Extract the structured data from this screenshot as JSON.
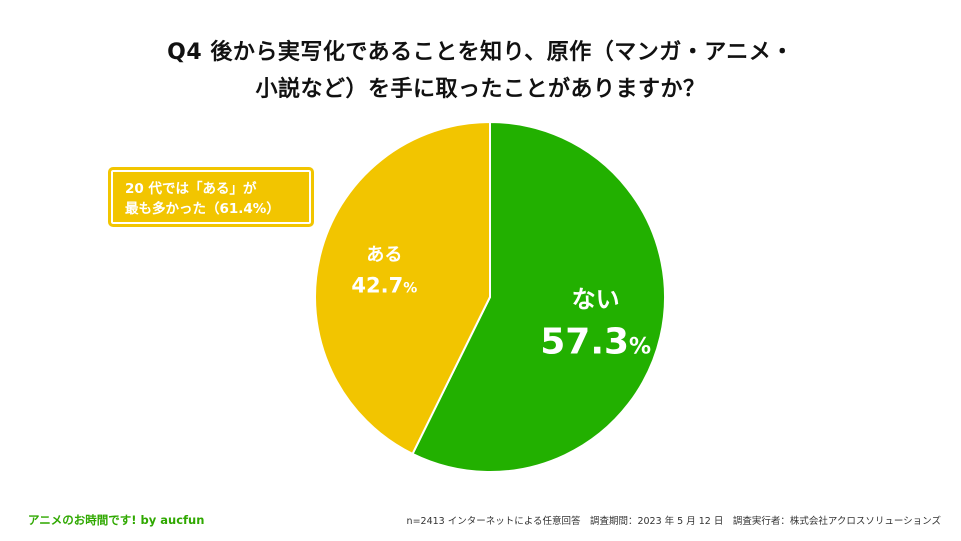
{
  "title": {
    "line1": "Q4  後から実写化であることを知り、原作（マンガ・アニメ・",
    "line2": "小説など）を手に取ったことがありますか？"
  },
  "callout": {
    "line1": "20 代では「ある」が",
    "line2": "最も多かった（61.4%）"
  },
  "footer": {
    "brand": "アニメのお時間です! by aucfun",
    "note": "n=2413 インターネットによる任意回答　調査期間：2023 年 5 月 12 日　調査実行者：株式会社アクロスソリューションズ"
  },
  "colors": {
    "green": "#22b000",
    "yellow": "#f2c500",
    "white": "#ffffff"
  },
  "chart_data": {
    "type": "pie",
    "title": "",
    "slices": [
      {
        "label": "ない",
        "value": 57.3,
        "display": "57.3",
        "unit": "%",
        "color": "#22b000"
      },
      {
        "label": "ある",
        "value": 42.7,
        "display": "42.7",
        "unit": "%",
        "color": "#f2c500"
      }
    ]
  }
}
